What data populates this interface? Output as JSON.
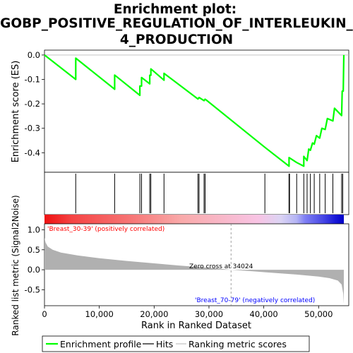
{
  "chart_data": {
    "type": "line",
    "title_lines": [
      "Enrichment plot:",
      "GOBP_POSITIVE_REGULATION_OF_INTERLEUKIN_",
      "4_PRODUCTION"
    ],
    "es_panel": {
      "ylabel": "Enrichment score (ES)",
      "ylim": [
        -0.48,
        0.02
      ],
      "yticks": [
        0.0,
        -0.1,
        -0.2,
        -0.3,
        -0.4
      ],
      "ytick_labels": [
        "0.0",
        "-0.1",
        "-0.2",
        "-0.3",
        "-0.4"
      ],
      "series": [
        {
          "name": "Enrichment profile",
          "color": "#00ff00",
          "x": [
            0,
            5700,
            5700,
            12800,
            12800,
            17400,
            17400,
            17700,
            17700,
            19200,
            19200,
            19400,
            19400,
            21800,
            21800,
            28000,
            28200,
            29100,
            29300,
            29500,
            40200,
            44600,
            44600,
            46000,
            47300,
            47300,
            47900,
            48200,
            48500,
            48900,
            49200,
            49600,
            50200,
            50600,
            51200,
            51600,
            52600,
            52900,
            54200,
            54300,
            54500,
            54600
          ],
          "y": [
            0.0,
            -0.1,
            -0.013,
            -0.14,
            -0.082,
            -0.165,
            -0.127,
            -0.127,
            -0.092,
            -0.118,
            -0.083,
            -0.083,
            -0.057,
            -0.103,
            -0.075,
            -0.18,
            -0.174,
            -0.187,
            -0.181,
            -0.184,
            -0.378,
            -0.455,
            -0.42,
            -0.44,
            -0.455,
            -0.415,
            -0.432,
            -0.385,
            -0.39,
            -0.36,
            -0.365,
            -0.33,
            -0.34,
            -0.3,
            -0.305,
            -0.26,
            -0.27,
            -0.218,
            -0.248,
            -0.148,
            -0.148,
            0.0
          ]
        }
      ]
    },
    "hits": [
      5700,
      12800,
      17400,
      17700,
      19200,
      19400,
      21800,
      28000,
      28200,
      29100,
      29300,
      40200,
      44600,
      44700,
      46000,
      47300,
      47900,
      48500,
      49200,
      50200,
      51200,
      52600,
      54200,
      54400
    ],
    "metric_panel": {
      "ylabel": "Ranked list metric (Signal2Noise)",
      "ylim": [
        -0.9,
        1.15
      ],
      "yticks": [
        1.0,
        0.5,
        0.0,
        -0.5
      ],
      "ytick_labels": [
        "1.0",
        "0.5",
        "0.0",
        "-0.5"
      ],
      "fill_color": "#b0b0b0",
      "x": [
        0,
        200,
        600,
        1500,
        3000,
        6000,
        10000,
        15000,
        20000,
        25000,
        30000,
        34024,
        38000,
        42000,
        46000,
        50000,
        52000,
        53500,
        54200,
        54500,
        54600
      ],
      "y": [
        0.8,
        0.68,
        0.58,
        0.5,
        0.43,
        0.36,
        0.29,
        0.22,
        0.16,
        0.1,
        0.05,
        0.0,
        -0.04,
        -0.08,
        -0.12,
        -0.17,
        -0.21,
        -0.27,
        -0.37,
        -0.6,
        -0.85
      ],
      "zero_cross_label": "Zero cross at 34024",
      "zero_cross": 34024,
      "pos_label": "'Breast_30-39' (positively correlated)",
      "pos_color": "#ff0000",
      "neg_label": "'Breast_70-79' (negatively correlated)",
      "neg_color": "#0000ff"
    },
    "xlabel": "Rank in Ranked Dataset",
    "xlim": [
      0,
      55500
    ],
    "xticks": [
      0,
      10000,
      20000,
      30000,
      40000,
      50000
    ],
    "xtick_labels": [
      "0",
      "10,000",
      "20,000",
      "30,000",
      "40,000",
      "50,000"
    ],
    "colorbar": {
      "x_stops": [
        0,
        5000,
        16000,
        25000,
        39000,
        43000,
        46000,
        47500,
        51000,
        53000,
        54600
      ],
      "colors": [
        "#ee1111",
        "#f54444",
        "#f77777",
        "#f9aaaa",
        "#f8c4e4",
        "#dcd4f4",
        "#b4b4f4",
        "#8080f4",
        "#4444e4",
        "#1a1ad8",
        "#0000c8"
      ]
    },
    "legend": [
      {
        "label": "Enrichment profile",
        "color": "#00ff00"
      },
      {
        "label": "Hits",
        "color": "#000000"
      },
      {
        "label": "Ranking metric scores",
        "color": "#c0c0c0"
      }
    ]
  }
}
